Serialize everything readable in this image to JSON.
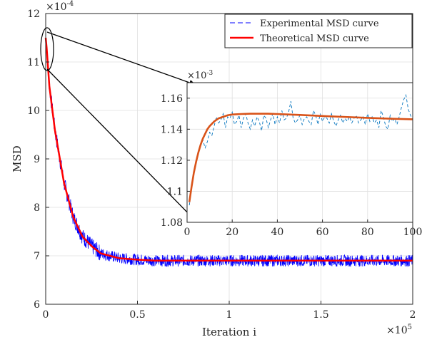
{
  "chart_data": {
    "type": "line",
    "xlabel": "Iteration i",
    "ylabel": "MSD",
    "x_multiplier": "×10",
    "x_multiplier_exp": "5",
    "y_multiplier": "×10",
    "y_multiplier_exp": "-4",
    "xlim": [
      0,
      2
    ],
    "ylim": [
      6,
      12
    ],
    "xticks": [
      0,
      0.5,
      1,
      1.5,
      2
    ],
    "xtick_labels": [
      "0",
      "0.5",
      "1",
      "1.5",
      "2"
    ],
    "yticks": [
      6,
      7,
      8,
      9,
      10,
      11,
      12
    ],
    "ytick_labels": [
      "6",
      "7",
      "8",
      "9",
      "10",
      "11",
      "12"
    ],
    "grid": true,
    "legend_position": "top-right",
    "series": [
      {
        "name": "Experimental MSD curve",
        "color": "#0000ff",
        "style": "dashed",
        "x": [
          0,
          0.005,
          0.02,
          0.05,
          0.1,
          0.15,
          0.2,
          0.25,
          0.3,
          0.4,
          0.5,
          0.6,
          0.8,
          1.0,
          1.2,
          1.5,
          1.8,
          2.0
        ],
        "y": [
          11.5,
          11.3,
          10.5,
          9.6,
          8.5,
          7.8,
          7.4,
          7.2,
          7.05,
          6.95,
          6.92,
          6.9,
          6.9,
          6.9,
          6.9,
          6.9,
          6.9,
          6.9
        ],
        "noise_band": 0.12
      },
      {
        "name": "Theoretical MSD curve",
        "color": "#ff0000",
        "style": "solid",
        "x": [
          0,
          0.005,
          0.02,
          0.05,
          0.1,
          0.15,
          0.2,
          0.25,
          0.3,
          0.4,
          0.5,
          0.6,
          0.8,
          1.0,
          1.2,
          1.5,
          1.8,
          2.0
        ],
        "y": [
          11.5,
          11.3,
          10.5,
          9.6,
          8.5,
          7.8,
          7.4,
          7.2,
          7.05,
          6.95,
          6.92,
          6.9,
          6.9,
          6.9,
          6.9,
          6.9,
          6.9,
          6.9
        ]
      }
    ],
    "inset": {
      "xlim": [
        0,
        100
      ],
      "ylim": [
        1.08,
        1.17
      ],
      "xticks": [
        0,
        20,
        40,
        60,
        80,
        100
      ],
      "xtick_labels": [
        "0",
        "20",
        "40",
        "60",
        "80",
        "100"
      ],
      "yticks": [
        1.08,
        1.1,
        1.12,
        1.14,
        1.16
      ],
      "ytick_labels": [
        "1.08",
        "1.1",
        "1.12",
        "1.14",
        "1.16"
      ],
      "y_multiplier": "×10",
      "y_multiplier_exp": "-3",
      "grid": true,
      "series": [
        {
          "name": "Experimental MSD curve",
          "color": "#0072bd",
          "style": "dashed",
          "x": [
            1,
            2,
            3,
            4,
            5,
            6,
            7,
            8,
            9,
            10,
            11,
            12,
            13,
            14,
            15,
            16,
            17,
            18,
            19,
            20,
            21,
            22,
            23,
            24,
            25,
            26,
            27,
            28,
            29,
            30,
            31,
            32,
            33,
            34,
            35,
            36,
            37,
            38,
            39,
            40,
            41,
            42,
            43,
            44,
            45,
            46,
            47,
            48,
            49,
            50,
            51,
            52,
            53,
            54,
            55,
            56,
            57,
            58,
            59,
            60,
            61,
            62,
            63,
            64,
            65,
            66,
            67,
            68,
            69,
            70,
            71,
            72,
            73,
            74,
            75,
            76,
            77,
            78,
            79,
            80,
            81,
            82,
            83,
            84,
            85,
            86,
            87,
            88,
            89,
            90,
            91,
            92,
            93,
            94,
            95,
            96,
            97,
            98,
            99,
            100
          ],
          "y": [
            1.091,
            1.102,
            1.112,
            1.119,
            1.124,
            1.129,
            1.133,
            1.128,
            1.132,
            1.138,
            1.136,
            1.142,
            1.148,
            1.144,
            1.146,
            1.15,
            1.141,
            1.148,
            1.147,
            1.151,
            1.143,
            1.145,
            1.149,
            1.141,
            1.147,
            1.15,
            1.144,
            1.14,
            1.146,
            1.142,
            1.148,
            1.145,
            1.139,
            1.149,
            1.147,
            1.141,
            1.146,
            1.15,
            1.143,
            1.148,
            1.144,
            1.152,
            1.146,
            1.147,
            1.151,
            1.158,
            1.147,
            1.144,
            1.146,
            1.149,
            1.143,
            1.147,
            1.148,
            1.145,
            1.143,
            1.152,
            1.149,
            1.143,
            1.15,
            1.145,
            1.148,
            1.147,
            1.144,
            1.15,
            1.145,
            1.142,
            1.146,
            1.149,
            1.144,
            1.147,
            1.145,
            1.148,
            1.144,
            1.147,
            1.149,
            1.144,
            1.146,
            1.148,
            1.143,
            1.15,
            1.145,
            1.148,
            1.144,
            1.146,
            1.141,
            1.152,
            1.148,
            1.142,
            1.14,
            1.149,
            1.145,
            1.147,
            1.143,
            1.148,
            1.154,
            1.159,
            1.162,
            1.153,
            1.149,
            1.146
          ]
        },
        {
          "name": "Theoretical MSD curve",
          "color": "#d95319",
          "style": "solid",
          "x": [
            1,
            2,
            3,
            4,
            5,
            6,
            7,
            8,
            9,
            10,
            12,
            14,
            16,
            18,
            20,
            24,
            28,
            32,
            36,
            40,
            50,
            60,
            70,
            80,
            90,
            100
          ],
          "y": [
            1.093,
            1.103,
            1.112,
            1.119,
            1.125,
            1.13,
            1.134,
            1.137,
            1.14,
            1.142,
            1.145,
            1.147,
            1.148,
            1.149,
            1.1495,
            1.1498,
            1.15,
            1.15,
            1.15,
            1.1498,
            1.1492,
            1.1485,
            1.1479,
            1.1473,
            1.1468,
            1.1464
          ]
        }
      ]
    }
  }
}
